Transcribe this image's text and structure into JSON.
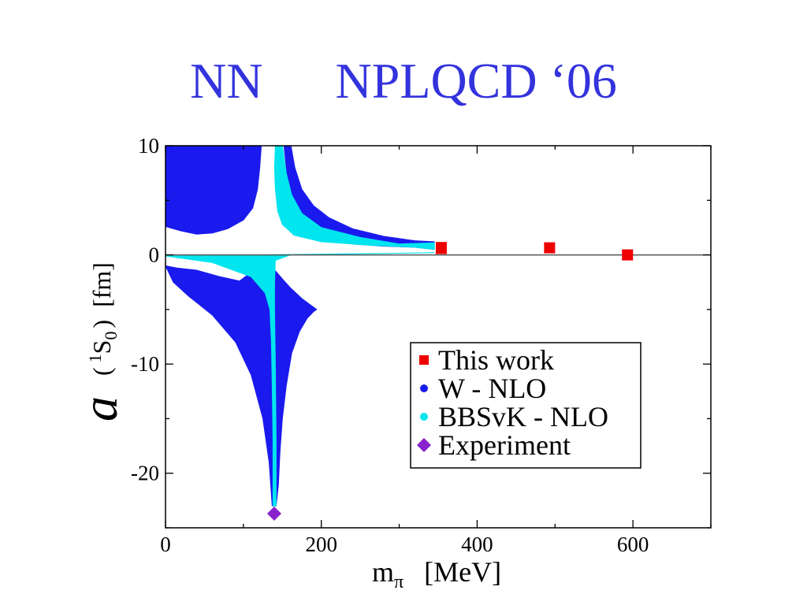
{
  "slide": {
    "title_left": "NN",
    "title_right": "NPLQCD ‘06",
    "title_color": "#3333dd"
  },
  "chart_data": {
    "type": "scatter",
    "title": "",
    "xlabel": {
      "symbol": "m",
      "subscript": "π",
      "unit": "[MeV]"
    },
    "ylabel": {
      "symbol": "a",
      "state_open": "(",
      "state_superscript": "1",
      "state_letter": "S",
      "state_subscript": "0",
      "state_close": ")",
      "unit": "[fm]"
    },
    "xlim": [
      0,
      700
    ],
    "ylim": [
      -25,
      10
    ],
    "xticks": [
      0,
      200,
      400,
      600
    ],
    "yticks": [
      10,
      0,
      -10,
      -20
    ],
    "x_minor_step": 100,
    "y_minor_step": 5,
    "zero_line": true,
    "grid": false,
    "legend_position": "bottom-right",
    "series": [
      {
        "name": "This work",
        "marker": "square",
        "color": "#ee0000",
        "points": [
          {
            "x": 354,
            "y": 0.63,
            "yerr": 0.5
          },
          {
            "x": 493,
            "y": 0.65,
            "yerr": 0.4
          },
          {
            "x": 593,
            "y": 0.0,
            "yerr": 0.4
          }
        ]
      },
      {
        "name": "W - NLO",
        "marker": "circle",
        "color": "#1a1aee",
        "bands": [
          {
            "part": "upper-left",
            "x_start": 0,
            "x_end": 123,
            "lower": [
              [
                0,
                2.6
              ],
              [
                20,
                2.2
              ],
              [
                40,
                1.9
              ],
              [
                60,
                2.0
              ],
              [
                80,
                2.4
              ],
              [
                100,
                3.2
              ],
              [
                112,
                4.3
              ],
              [
                118,
                6.0
              ],
              [
                121,
                8.0
              ],
              [
                123,
                10.0
              ]
            ]
          },
          {
            "part": "upper-right",
            "outer": [
              [
                161,
                10.0
              ],
              [
                166,
                8.0
              ],
              [
                175,
                6.0
              ],
              [
                190,
                4.5
              ],
              [
                210,
                3.4
              ],
              [
                240,
                2.4
              ],
              [
                280,
                1.7
              ],
              [
                320,
                1.3
              ],
              [
                345,
                1.2
              ]
            ],
            "inner": [
              [
                345,
                0.5
              ],
              [
                320,
                0.7
              ],
              [
                280,
                0.8
              ],
              [
                240,
                1.0
              ],
              [
                210,
                1.4
              ],
              [
                190,
                2.0
              ],
              [
                175,
                3.0
              ],
              [
                165,
                4.5
              ],
              [
                158,
                6.0
              ],
              [
                152,
                10.0
              ]
            ]
          },
          {
            "part": "lower",
            "outer_left": [
              [
                0,
                -1.0
              ],
              [
                10,
                -2.5
              ],
              [
                30,
                -3.8
              ],
              [
                60,
                -5.5
              ],
              [
                90,
                -8.0
              ],
              [
                110,
                -11.0
              ],
              [
                125,
                -15.0
              ],
              [
                133,
                -19.0
              ],
              [
                136,
                -22.0
              ],
              [
                137,
                -23.0
              ]
            ],
            "outer_right": [
              [
                142,
                -23.0
              ],
              [
                145,
                -21.0
              ],
              [
                147,
                -18.0
              ],
              [
                150,
                -15.0
              ],
              [
                155,
                -12.0
              ],
              [
                162,
                -9.0
              ],
              [
                172,
                -7.0
              ],
              [
                182,
                -5.8
              ],
              [
                190,
                -5.2
              ],
              [
                194,
                -5.0
              ]
            ],
            "inner": [
              [
                194,
                -5.0
              ],
              [
                175,
                -4.0
              ],
              [
                160,
                -3.0
              ],
              [
                150,
                -2.2
              ],
              [
                138,
                -1.2
              ],
              [
                122,
                -1.1
              ],
              [
                110,
                -1.6
              ],
              [
                95,
                -2.4
              ],
              [
                70,
                -2.0
              ],
              [
                40,
                -1.4
              ],
              [
                15,
                -1.2
              ],
              [
                0,
                -1.0
              ]
            ]
          }
        ]
      },
      {
        "name": "BBSvK - NLO",
        "marker": "circle",
        "color": "#00e5ee",
        "bands": [
          {
            "part": "upper",
            "left": [
              [
                141,
                10.0
              ],
              [
                140,
                8.0
              ],
              [
                141,
                6.0
              ],
              [
                144,
                4.0
              ],
              [
                150,
                2.8
              ],
              [
                165,
                1.8
              ],
              [
                200,
                1.2
              ],
              [
                260,
                0.9
              ],
              [
                320,
                0.7
              ],
              [
                345,
                0.5
              ]
            ],
            "right": [
              [
                345,
                1.1
              ],
              [
                300,
                1.0
              ],
              [
                250,
                1.6
              ],
              [
                200,
                2.5
              ],
              [
                175,
                3.8
              ],
              [
                162,
                5.5
              ],
              [
                155,
                7.5
              ],
              [
                150,
                10.0
              ]
            ]
          },
          {
            "part": "lower",
            "left": [
              [
                0,
                -0.1
              ],
              [
                60,
                -0.7
              ],
              [
                110,
                -2.0
              ],
              [
                128,
                -3.5
              ],
              [
                134,
                -5.0
              ],
              [
                136,
                -8.0
              ],
              [
                137,
                -12.0
              ],
              [
                138,
                -17.0
              ],
              [
                138,
                -23.0
              ]
            ],
            "right": [
              [
                142,
                -23.0
              ],
              [
                142,
                -17.0
              ],
              [
                141,
                -10.0
              ],
              [
                140,
                -5.0
              ],
              [
                140,
                -2.5
              ],
              [
                141,
                -0.5
              ],
              [
                160,
                0.0
              ],
              [
                250,
                0.1
              ],
              [
                345,
                0.2
              ]
            ]
          }
        ]
      },
      {
        "name": "Experiment",
        "marker": "diamond",
        "color": "#8822cc",
        "points": [
          {
            "x": 139.57,
            "y": -23.7
          }
        ]
      }
    ]
  }
}
